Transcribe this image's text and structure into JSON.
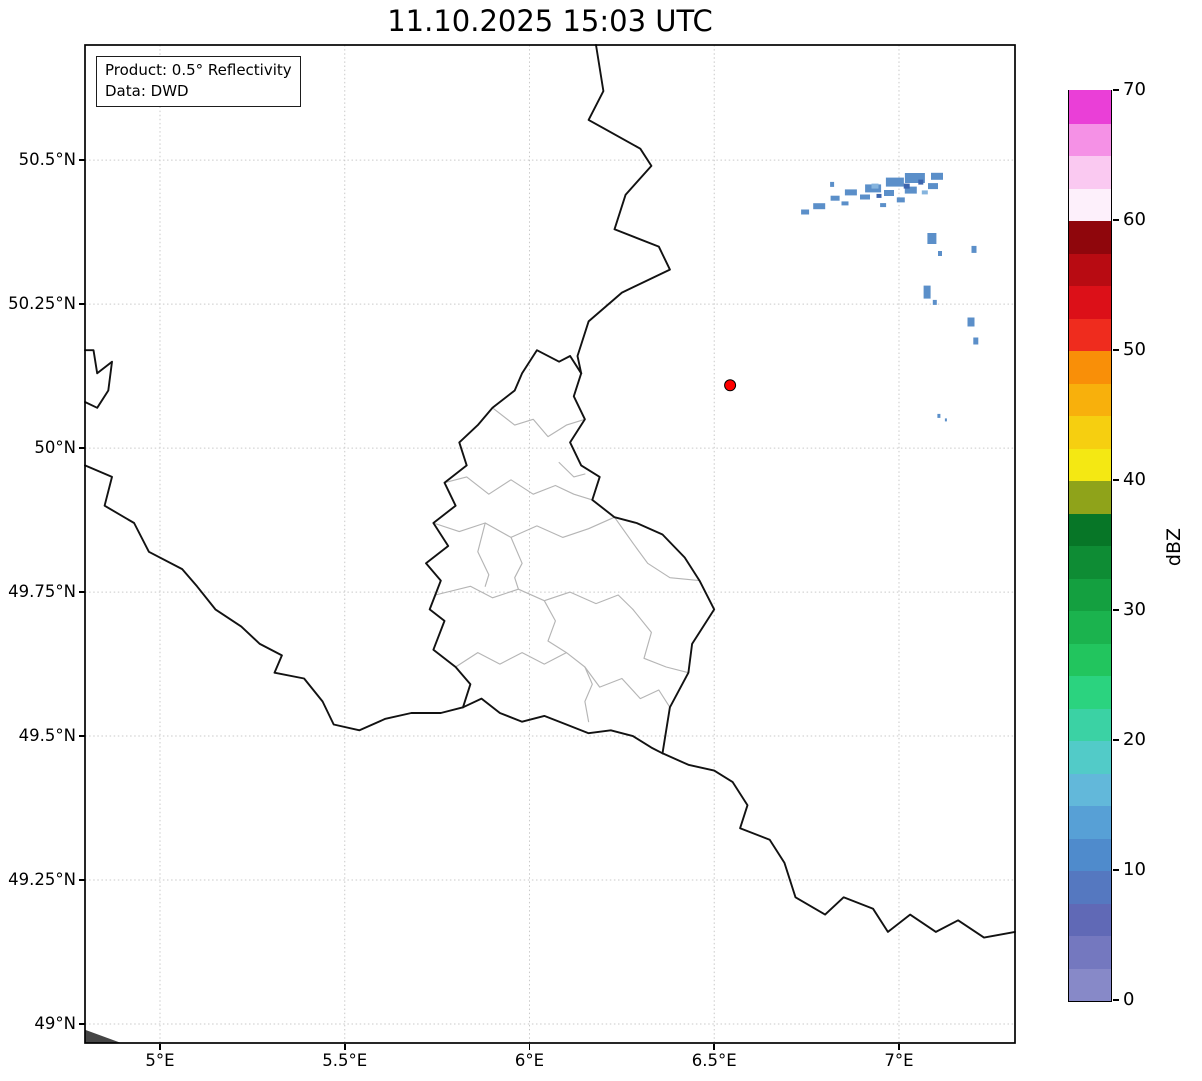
{
  "title": "11.10.2025 15:03 UTC",
  "info_box": {
    "line1": "Product: 0.5° Reflectivity",
    "line2": "Data: DWD"
  },
  "axes": {
    "x_ticks": [
      {
        "lon": 5.0,
        "label": "5°E"
      },
      {
        "lon": 5.5,
        "label": "5.5°E"
      },
      {
        "lon": 6.0,
        "label": "6°E"
      },
      {
        "lon": 6.5,
        "label": "6.5°E"
      },
      {
        "lon": 7.0,
        "label": "7°E"
      }
    ],
    "y_ticks": [
      {
        "lat": 49.0,
        "label": "49°N"
      },
      {
        "lat": 49.25,
        "label": "49.25°N"
      },
      {
        "lat": 49.5,
        "label": "49.5°N"
      },
      {
        "lat": 49.75,
        "label": "49.75°N"
      },
      {
        "lat": 50.0,
        "label": "50°N"
      },
      {
        "lat": 50.25,
        "label": "50.25°N"
      },
      {
        "lat": 50.5,
        "label": "50.5°N"
      }
    ]
  },
  "map_extent": {
    "lon_min": 4.797,
    "lon_max": 7.314,
    "lat_min": 48.967,
    "lat_max": 50.7
  },
  "marker": {
    "lon": 6.543,
    "lat": 50.109,
    "color": "#ff0000"
  },
  "colorbar": {
    "label": "dBZ",
    "vmin": 0,
    "vmax": 70,
    "tick_values": [
      0,
      10,
      20,
      30,
      40,
      50,
      60,
      70
    ],
    "colors": [
      "#8789c8",
      "#7478bf",
      "#6069b6",
      "#5578c0",
      "#4f8bcc",
      "#57a0d6",
      "#62b8da",
      "#52cbc8",
      "#3bd2a4",
      "#2bd37f",
      "#22c55e",
      "#1bb34e",
      "#14a040",
      "#0e8c34",
      "#077627",
      "#8fa31a",
      "#f4e813",
      "#f6cf10",
      "#f8b00c",
      "#f98f08",
      "#ef2c1e",
      "#dc1018",
      "#b80b12",
      "#8f060c",
      "#fdf0fb",
      "#fac9f1",
      "#f591e6",
      "#ea3fd7"
    ]
  },
  "echo_colors": [
    "#5b8fc9",
    "#3c64ad",
    "#85b4de"
  ],
  "radar_echoes": [
    [
      6.746,
      50.41,
      8,
      5,
      0
    ],
    [
      6.784,
      50.42,
      12,
      6,
      0
    ],
    [
      6.827,
      50.434,
      9,
      5,
      0
    ],
    [
      6.854,
      50.425,
      7,
      4,
      0
    ],
    [
      6.87,
      50.444,
      12,
      6,
      0
    ],
    [
      6.908,
      50.436,
      10,
      5,
      0
    ],
    [
      6.93,
      50.451,
      16,
      8,
      0
    ],
    [
      6.973,
      50.443,
      10,
      6,
      0
    ],
    [
      6.989,
      50.462,
      18,
      9,
      0
    ],
    [
      7.032,
      50.448,
      12,
      7,
      0
    ],
    [
      7.043,
      50.469,
      20,
      10,
      0
    ],
    [
      7.092,
      50.455,
      10,
      6,
      0
    ],
    [
      7.103,
      50.472,
      12,
      7,
      0
    ],
    [
      7.005,
      50.431,
      8,
      5,
      0
    ],
    [
      6.957,
      50.422,
      6,
      4,
      0
    ],
    [
      6.819,
      50.458,
      4,
      5,
      0
    ],
    [
      7.021,
      50.455,
      6,
      5,
      1
    ],
    [
      7.059,
      50.462,
      5,
      5,
      1
    ],
    [
      6.946,
      50.438,
      5,
      4,
      1
    ],
    [
      7.07,
      50.444,
      6,
      4,
      2
    ],
    [
      6.935,
      50.455,
      7,
      5,
      2
    ],
    [
      7.089,
      50.364,
      9,
      11,
      0
    ],
    [
      7.111,
      50.338,
      4,
      5,
      0
    ],
    [
      7.203,
      50.345,
      5,
      7,
      0
    ],
    [
      7.076,
      50.271,
      7,
      13,
      0
    ],
    [
      7.097,
      50.253,
      4,
      5,
      0
    ],
    [
      7.195,
      50.219,
      7,
      9,
      0
    ],
    [
      7.208,
      50.186,
      5,
      7,
      0
    ],
    [
      7.108,
      50.056,
      3,
      4,
      0
    ],
    [
      7.127,
      50.049,
      2,
      3,
      0
    ]
  ],
  "borders": {
    "country": [
      [
        [
          6.18,
          50.7
        ],
        [
          6.2,
          50.62
        ],
        [
          6.16,
          50.57
        ],
        [
          6.3,
          50.52
        ],
        [
          6.33,
          50.49
        ],
        [
          6.26,
          50.44
        ],
        [
          6.23,
          50.38
        ],
        [
          6.35,
          50.35
        ],
        [
          6.38,
          50.31
        ],
        [
          6.25,
          50.27
        ],
        [
          6.16,
          50.22
        ],
        [
          6.13,
          50.16
        ],
        [
          6.14,
          50.13
        ]
      ],
      [
        [
          6.14,
          50.13
        ],
        [
          6.12,
          50.09
        ],
        [
          6.15,
          50.05
        ],
        [
          6.11,
          50.01
        ],
        [
          6.14,
          49.97
        ],
        [
          6.19,
          49.95
        ],
        [
          6.17,
          49.91
        ],
        [
          6.23,
          49.88
        ],
        [
          6.29,
          49.87
        ],
        [
          6.36,
          49.85
        ],
        [
          6.42,
          49.81
        ],
        [
          6.46,
          49.77
        ],
        [
          6.5,
          49.72
        ],
        [
          6.44,
          49.66
        ],
        [
          6.43,
          49.61
        ],
        [
          6.38,
          49.55
        ],
        [
          6.37,
          49.51
        ],
        [
          6.36,
          49.47
        ]
      ],
      [
        [
          6.36,
          49.47
        ],
        [
          6.43,
          49.45
        ],
        [
          6.5,
          49.44
        ],
        [
          6.55,
          49.42
        ],
        [
          6.59,
          49.38
        ],
        [
          6.57,
          49.34
        ],
        [
          6.65,
          49.32
        ],
        [
          6.69,
          49.28
        ],
        [
          6.72,
          49.22
        ],
        [
          6.8,
          49.19
        ],
        [
          6.85,
          49.22
        ],
        [
          6.93,
          49.2
        ],
        [
          6.97,
          49.16
        ],
        [
          7.03,
          49.19
        ],
        [
          7.1,
          49.16
        ],
        [
          7.16,
          49.18
        ],
        [
          7.23,
          49.15
        ],
        [
          7.314,
          49.16
        ]
      ],
      [
        [
          4.797,
          49.97
        ],
        [
          4.87,
          49.95
        ],
        [
          4.85,
          49.9
        ],
        [
          4.93,
          49.87
        ],
        [
          4.97,
          49.82
        ],
        [
          5.06,
          49.79
        ],
        [
          5.1,
          49.76
        ],
        [
          5.15,
          49.72
        ],
        [
          5.22,
          49.69
        ],
        [
          5.27,
          49.66
        ],
        [
          5.33,
          49.64
        ],
        [
          5.31,
          49.61
        ],
        [
          5.39,
          49.6
        ],
        [
          5.44,
          49.56
        ],
        [
          5.47,
          49.52
        ],
        [
          5.54,
          49.51
        ],
        [
          5.61,
          49.53
        ],
        [
          5.68,
          49.54
        ],
        [
          5.76,
          49.54
        ],
        [
          5.82,
          49.55
        ]
      ],
      [
        [
          5.82,
          49.55
        ],
        [
          5.84,
          49.59
        ],
        [
          5.8,
          49.62
        ],
        [
          5.74,
          49.65
        ],
        [
          5.77,
          49.7
        ],
        [
          5.73,
          49.72
        ],
        [
          5.76,
          49.77
        ],
        [
          5.72,
          49.8
        ],
        [
          5.78,
          49.83
        ],
        [
          5.74,
          49.87
        ],
        [
          5.8,
          49.9
        ],
        [
          5.77,
          49.94
        ],
        [
          5.83,
          49.97
        ],
        [
          5.81,
          50.01
        ],
        [
          5.86,
          50.04
        ],
        [
          5.9,
          50.07
        ],
        [
          5.96,
          50.1
        ],
        [
          5.98,
          50.13
        ],
        [
          6.02,
          50.17
        ],
        [
          6.08,
          50.15
        ],
        [
          6.11,
          50.16
        ],
        [
          6.14,
          50.13
        ]
      ],
      [
        [
          5.82,
          49.55
        ],
        [
          5.87,
          49.565
        ],
        [
          5.92,
          49.54
        ],
        [
          5.98,
          49.525
        ],
        [
          6.04,
          49.535
        ],
        [
          6.1,
          49.52
        ],
        [
          6.16,
          49.505
        ],
        [
          6.22,
          49.51
        ],
        [
          6.28,
          49.5
        ],
        [
          6.33,
          49.48
        ],
        [
          6.36,
          49.47
        ]
      ],
      [
        [
          4.797,
          50.08
        ],
        [
          4.83,
          50.07
        ],
        [
          4.86,
          50.1
        ],
        [
          4.87,
          50.15
        ],
        [
          4.83,
          50.13
        ],
        [
          4.82,
          50.17
        ],
        [
          4.797,
          50.17
        ]
      ]
    ],
    "districts": [
      [
        [
          5.9,
          50.07
        ],
        [
          5.96,
          50.04
        ],
        [
          6.01,
          50.05
        ],
        [
          6.05,
          50.02
        ],
        [
          6.1,
          50.04
        ],
        [
          6.15,
          50.05
        ]
      ],
      [
        [
          5.77,
          49.94
        ],
        [
          5.83,
          49.95
        ],
        [
          5.89,
          49.92
        ],
        [
          5.95,
          49.945
        ],
        [
          6.01,
          49.92
        ],
        [
          6.07,
          49.935
        ],
        [
          6.12,
          49.92
        ],
        [
          6.17,
          49.91
        ]
      ],
      [
        [
          5.74,
          49.87
        ],
        [
          5.81,
          49.855
        ],
        [
          5.88,
          49.87
        ],
        [
          5.95,
          49.845
        ],
        [
          6.02,
          49.865
        ],
        [
          6.09,
          49.845
        ],
        [
          6.16,
          49.86
        ],
        [
          6.23,
          49.88
        ]
      ],
      [
        [
          5.88,
          49.87
        ],
        [
          5.86,
          49.82
        ],
        [
          5.89,
          49.78
        ],
        [
          5.88,
          49.76
        ]
      ],
      [
        [
          5.745,
          49.745
        ],
        [
          5.84,
          49.76
        ],
        [
          5.9,
          49.74
        ],
        [
          5.97,
          49.755
        ],
        [
          6.04,
          49.735
        ],
        [
          6.11,
          49.75
        ],
        [
          6.18,
          49.73
        ],
        [
          6.24,
          49.745
        ],
        [
          6.28,
          49.72
        ]
      ],
      [
        [
          5.8,
          49.62
        ],
        [
          5.86,
          49.645
        ],
        [
          5.92,
          49.625
        ],
        [
          5.98,
          49.645
        ],
        [
          6.04,
          49.625
        ],
        [
          6.1,
          49.645
        ],
        [
          6.15,
          49.62
        ]
      ],
      [
        [
          6.15,
          49.62
        ],
        [
          6.19,
          49.585
        ],
        [
          6.25,
          49.6
        ],
        [
          6.3,
          49.565
        ],
        [
          6.35,
          49.58
        ],
        [
          6.38,
          49.55
        ]
      ],
      [
        [
          6.28,
          49.72
        ],
        [
          6.33,
          49.68
        ],
        [
          6.31,
          49.635
        ],
        [
          6.37,
          49.62
        ],
        [
          6.43,
          49.61
        ]
      ],
      [
        [
          6.23,
          49.88
        ],
        [
          6.28,
          49.835
        ],
        [
          6.32,
          49.8
        ],
        [
          6.38,
          49.775
        ],
        [
          6.46,
          49.77
        ]
      ],
      [
        [
          6.04,
          49.735
        ],
        [
          6.07,
          49.7
        ],
        [
          6.05,
          49.665
        ],
        [
          6.1,
          49.645
        ]
      ],
      [
        [
          6.08,
          49.975
        ],
        [
          6.12,
          49.95
        ],
        [
          6.15,
          49.955
        ]
      ],
      [
        [
          5.95,
          49.845
        ],
        [
          5.98,
          49.8
        ],
        [
          5.96,
          49.775
        ],
        [
          5.97,
          49.755
        ]
      ],
      [
        [
          6.15,
          49.62
        ],
        [
          6.17,
          49.59
        ],
        [
          6.15,
          49.56
        ],
        [
          6.16,
          49.525
        ]
      ]
    ]
  },
  "corner_patch": [
    [
      4.797,
      48.99
    ],
    [
      4.895,
      48.967
    ],
    [
      4.797,
      48.967
    ]
  ]
}
